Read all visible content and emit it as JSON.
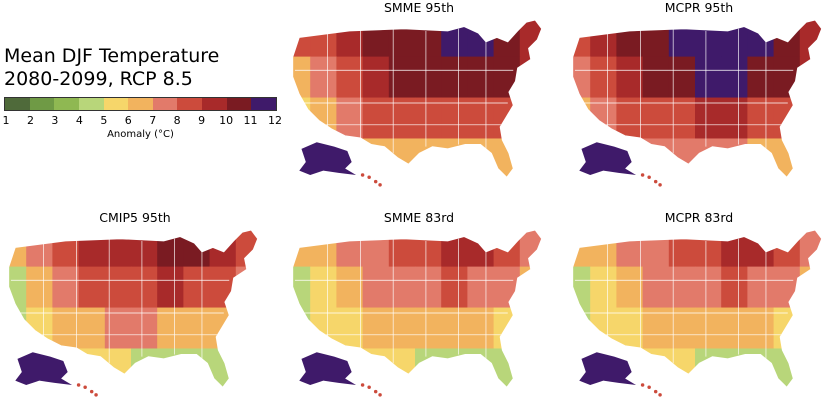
{
  "title": {
    "line1": "Mean DJF Temperature",
    "line2": "2080-2099, RCP 8.5"
  },
  "colorbar": {
    "label": "Anomaly (°C)",
    "ticks": [
      "1",
      "2",
      "3",
      "4",
      "5",
      "6",
      "7",
      "8",
      "9",
      "10",
      "11",
      "12"
    ],
    "colors": [
      "#4f6a3a",
      "#6f9a45",
      "#8fb852",
      "#b8d67a",
      "#f6d66a",
      "#f2b35e",
      "#e27a6a",
      "#cc4b3c",
      "#a82a2a",
      "#7a1b22",
      "#3f1a6a"
    ]
  },
  "panels": [
    {
      "title": "SMME 95th",
      "levels": [
        8,
        8,
        9,
        10,
        10,
        10,
        11,
        11,
        10,
        9,
        6,
        7,
        8,
        9,
        10,
        10,
        10,
        10,
        10,
        9,
        5,
        6,
        7,
        8,
        8,
        8,
        8,
        8,
        8,
        7,
        5,
        5,
        6,
        6,
        6,
        6,
        6,
        6,
        6,
        5
      ],
      "alaska": 11
    },
    {
      "title": "MCPR 95th",
      "levels": [
        8,
        9,
        10,
        10,
        11,
        11,
        11,
        11,
        10,
        9,
        7,
        8,
        9,
        10,
        10,
        11,
        11,
        10,
        10,
        9,
        6,
        7,
        8,
        8,
        8,
        9,
        9,
        8,
        8,
        7,
        6,
        6,
        7,
        7,
        7,
        7,
        7,
        6,
        6,
        5
      ],
      "alaska": 11
    },
    {
      "title": "CMIP5 95th",
      "levels": [
        6,
        7,
        8,
        9,
        9,
        9,
        10,
        10,
        9,
        8,
        4,
        6,
        7,
        8,
        8,
        8,
        9,
        8,
        8,
        7,
        4,
        5,
        6,
        6,
        7,
        7,
        6,
        6,
        6,
        5,
        5,
        5,
        5,
        5,
        5,
        4,
        4,
        4,
        4,
        4
      ],
      "alaska": 11
    },
    {
      "title": "SMME 83rd",
      "levels": [
        6,
        6,
        7,
        7,
        8,
        8,
        9,
        9,
        8,
        7,
        4,
        5,
        6,
        7,
        7,
        7,
        8,
        7,
        7,
        6,
        4,
        5,
        5,
        6,
        6,
        6,
        6,
        6,
        5,
        5,
        5,
        5,
        5,
        5,
        5,
        4,
        4,
        4,
        4,
        3
      ],
      "alaska": 11
    },
    {
      "title": "MCPR 83rd",
      "levels": [
        6,
        6,
        7,
        7,
        8,
        8,
        9,
        9,
        8,
        7,
        4,
        5,
        6,
        7,
        7,
        7,
        8,
        7,
        7,
        6,
        4,
        5,
        5,
        6,
        6,
        6,
        6,
        6,
        5,
        5,
        5,
        5,
        5,
        5,
        5,
        4,
        4,
        4,
        4,
        3
      ],
      "alaska": 11
    }
  ]
}
